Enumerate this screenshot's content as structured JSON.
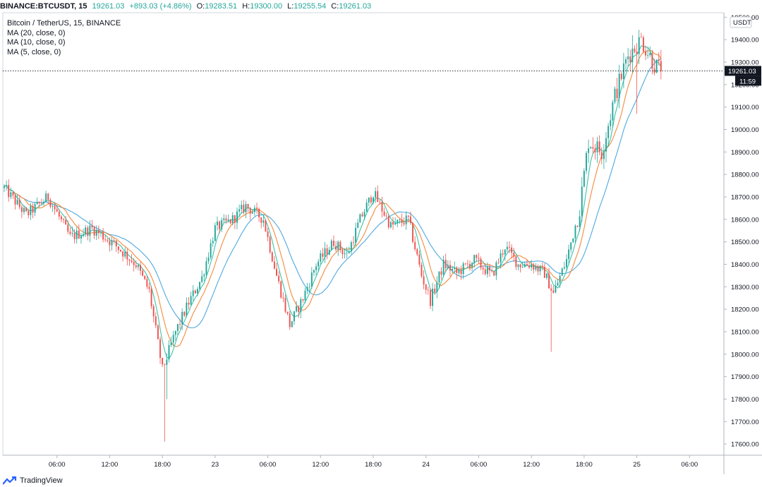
{
  "topbar": {
    "symbol": "BINANCE:BTCUSDT, 15",
    "last": "19261.03",
    "change": "+893.03 (+4.86%)",
    "o_label": "O:",
    "o_value": "19283.51",
    "h_label": "H:",
    "h_value": "19300.00",
    "l_label": "L:",
    "l_value": "19255.54",
    "c_label": "C:",
    "c_value": "19261.03"
  },
  "legend": {
    "title": "Bitcoin / TetherUS, 15, BINANCE",
    "indicators": [
      "MA (20, close, 0)",
      "MA (10, close, 0)",
      "MA (5, close, 0)"
    ]
  },
  "footer": {
    "brand": "TradingView",
    "logo_icon": "tradingview-logo-icon"
  },
  "colors": {
    "up": "#26a69a",
    "down": "#ef5350",
    "ma20": "#4fa9df",
    "ma10": "#f58a3d",
    "ma5": "#3cc4a6",
    "price_label_bg": "#131722"
  },
  "chart_data": {
    "type": "candlestick",
    "title": "Bitcoin / TetherUS, 15, BINANCE",
    "unit": "USDT",
    "current_price": "19261.03",
    "countdown": "11:59",
    "ylim": [
      17550,
      19520
    ],
    "y_ticks": [
      17600,
      17700,
      17800,
      17900,
      18000,
      18100,
      18200,
      18300,
      18400,
      18500,
      18600,
      18700,
      18800,
      18900,
      19000,
      19100,
      19200,
      19300,
      19400,
      19500
    ],
    "x_ticks": [
      {
        "label": "06:00",
        "t": 24
      },
      {
        "label": "12:00",
        "t": 48
      },
      {
        "label": "18:00",
        "t": 72
      },
      {
        "label": "23",
        "t": 96
      },
      {
        "label": "06:00",
        "t": 120
      },
      {
        "label": "12:00",
        "t": 144
      },
      {
        "label": "18:00",
        "t": 168
      },
      {
        "label": "24",
        "t": 192
      },
      {
        "label": "06:00",
        "t": 216
      },
      {
        "label": "12:00",
        "t": 240
      },
      {
        "label": "18:00",
        "t": 264
      },
      {
        "label": "25",
        "t": 288
      },
      {
        "label": "06:00",
        "t": 312
      }
    ],
    "x_range": [
      0,
      327
    ],
    "anchors": [
      {
        "t": 0,
        "p": 18740
      },
      {
        "t": 10,
        "p": 18620
      },
      {
        "t": 20,
        "p": 18700
      },
      {
        "t": 30,
        "p": 18520
      },
      {
        "t": 40,
        "p": 18560
      },
      {
        "t": 50,
        "p": 18490
      },
      {
        "t": 60,
        "p": 18400
      },
      {
        "t": 66,
        "p": 18280
      },
      {
        "t": 72,
        "p": 17930
      },
      {
        "t": 78,
        "p": 18100
      },
      {
        "t": 84,
        "p": 18230
      },
      {
        "t": 90,
        "p": 18340
      },
      {
        "t": 96,
        "p": 18560
      },
      {
        "t": 104,
        "p": 18600
      },
      {
        "t": 110,
        "p": 18660
      },
      {
        "t": 118,
        "p": 18600
      },
      {
        "t": 124,
        "p": 18350
      },
      {
        "t": 130,
        "p": 18130
      },
      {
        "t": 136,
        "p": 18250
      },
      {
        "t": 142,
        "p": 18400
      },
      {
        "t": 150,
        "p": 18500
      },
      {
        "t": 156,
        "p": 18440
      },
      {
        "t": 162,
        "p": 18600
      },
      {
        "t": 168,
        "p": 18720
      },
      {
        "t": 176,
        "p": 18570
      },
      {
        "t": 184,
        "p": 18600
      },
      {
        "t": 190,
        "p": 18350
      },
      {
        "t": 194,
        "p": 18240
      },
      {
        "t": 200,
        "p": 18400
      },
      {
        "t": 206,
        "p": 18360
      },
      {
        "t": 214,
        "p": 18420
      },
      {
        "t": 222,
        "p": 18350
      },
      {
        "t": 228,
        "p": 18480
      },
      {
        "t": 234,
        "p": 18400
      },
      {
        "t": 240,
        "p": 18400
      },
      {
        "t": 246,
        "p": 18360
      },
      {
        "t": 250,
        "p": 18270
      },
      {
        "t": 256,
        "p": 18420
      },
      {
        "t": 262,
        "p": 18650
      },
      {
        "t": 266,
        "p": 18950
      },
      {
        "t": 272,
        "p": 18900
      },
      {
        "t": 278,
        "p": 19150
      },
      {
        "t": 284,
        "p": 19330
      },
      {
        "t": 290,
        "p": 19400
      },
      {
        "t": 296,
        "p": 19290
      },
      {
        "t": 299,
        "p": 19261
      }
    ]
  }
}
